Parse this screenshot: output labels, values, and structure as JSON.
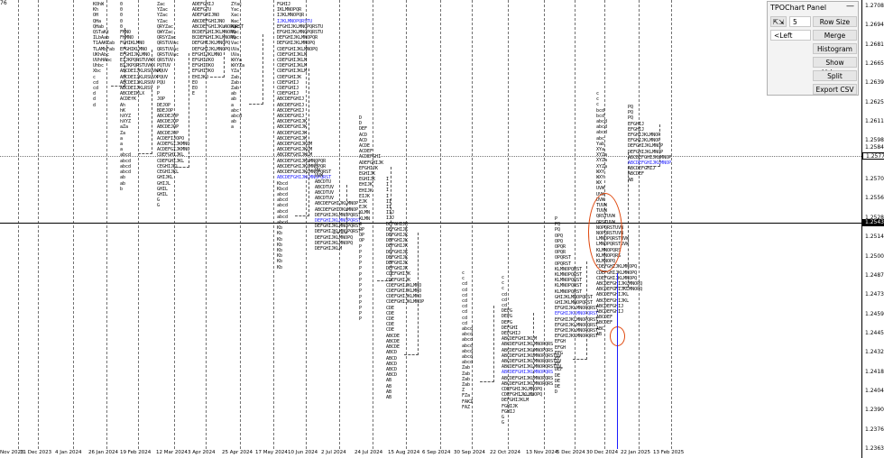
{
  "price_axis": {
    "ticks": [
      "1.27089",
      "1.26949",
      "1.26814",
      "1.26654",
      "1.26394",
      "1.26259",
      "1.26119",
      "1.25984",
      "1.25844",
      "1.25704",
      "1.25564",
      "1.25289",
      "1.25149",
      "1.25009",
      "1.24874",
      "1.24734",
      "1.24599",
      "1.24459",
      "1.24324",
      "1.24184",
      "1.24049",
      "1.23909",
      "1.23769",
      "1.23634"
    ],
    "current_price": "1.25776",
    "crosshair_price": "1.25431"
  },
  "date_axis": {
    "labels": [
      "Nov 2023",
      "11 Dec 2023",
      "4 Jan 2024",
      "26 Jan 2024",
      "19 Feb 2024",
      "12 Mar 2024",
      "3 Apr 2024",
      "25 Apr 2024",
      "17 May 2024",
      "10 Jun 2024",
      "2 Jul 2024",
      "24 Jul 2024",
      "15 Aug 2024",
      "6 Sep 2024",
      "30 Sep 2024",
      "22 Oct 2024",
      "13 Nov 2024",
      "5 Dec 2024",
      "30 Dec 2024",
      "22 Jan 2025",
      "13 Feb 2025"
    ]
  },
  "top_left_label": "76",
  "panel": {
    "title": "TPOChart Panel",
    "minimize": "—",
    "nav_arrows": "⇱⇲",
    "row_size_value": "5",
    "row_size_button": "Row Size",
    "left_select": "<Left",
    "merge_button": "Merge",
    "histogram_button": "Histogram",
    "show_volume_button": "Show Volume",
    "split_button": "Split",
    "export_button": "Export CSV"
  },
  "colors": {
    "annotation": "#e04a10",
    "tpo_blue": "#1a1aff",
    "current_marker": "#ffffff",
    "crosshair_marker": "#000000"
  },
  "profiles": [
    {
      "rows": [
        "KOhW",
        "Kh",
        "OH",
        "QHa",
        "QHab",
        "QSTaKt",
        "ILbAab",
        "T1AAKZab",
        "TLAMbFab",
        "UKhAbc",
        "UVhHAbc",
        "Uhbc",
        "Xbc",
        "c",
        "cd",
        "cd",
        "d",
        "d",
        "d"
      ]
    },
    {
      "rows": [
        "0",
        "0",
        "0",
        "0",
        "0",
        "FMNO",
        "FHMNO",
        "FGHIKLMNO",
        "EFGHIKLMNO",
        "EFGHIJKLMNO",
        "EIJKPQRSTUVWX",
        "BIJKPQRSTUVWX",
        "ABCDEIJKLRSUVWX",
        "ABCDEIJKLRSUVX",
        "ABCDEIJKLRSUV",
        "ABCDEIJKLRSV",
        "ABCDEIKLX",
        "ACDEfK",
        "Ah",
        "hK",
        "hXYZ",
        "hXYZ",
        "aZa",
        "Za",
        "a",
        "a",
        "a",
        "abcd",
        "abcd",
        "abcd",
        "abcd",
        "ab",
        "ab",
        "b"
      ]
    },
    {
      "rows": [
        "Zac",
        "YZac",
        "YZac",
        "YZac",
        "QRYZac",
        "QWYZac",
        "QRSYZac",
        "QRSTUVac",
        "QRSTUVac",
        "QRSTUVac",
        "QRSTUV",
        "PQTUV",
        "PQUV",
        "PQUV",
        "PQU",
        "P",
        "P",
        "JOP",
        "DEJOP",
        "BDEJOP",
        "ABCDEJOP",
        "ABCDEJOP",
        "ABCDEJOP",
        "ABCDEJOP",
        "ACDEFIJOPO",
        "ACDEFGIJKMNO",
        "ACDEFGIJKMNO",
        "CDEFGHIJKL",
        "CDEFGHIJKL",
        "CEGHIJKL",
        "CEGHIJKL",
        "GHIJKL",
        "GHIJL",
        "GHIL",
        "GHIL",
        "G",
        "G"
      ]
    },
    {
      "rows": [
        "ADEFGHIJ",
        "ADEFGTU",
        "ADEFGHIJNO",
        "ABCDEFGHIJNO",
        "ABCDEFGHIJKLNOPQRST",
        "BCDEFGHIJKLMNOPQ",
        "BCDEFGHIJKLMNOPQ",
        "DEFGHIJKLMNOPQ",
        "DEFGHIJKLMNOPQ",
        "EFGHIJKLMNO",
        "EFGHIJKO",
        "EFGHIJKO",
        "EFGHIJKO",
        "EHIJKO",
        "EO",
        "EO",
        "E"
      ]
    },
    {
      "rows": [
        "ZYac",
        "Yac",
        "Xac",
        "Wac",
        "Wac",
        "Vac",
        "Vac",
        "Vac",
        "UVa",
        "UVa",
        "WXYa",
        "WXYZa",
        "YZa",
        "Zab",
        "Zab",
        "Zab",
        "ab",
        "ab",
        "a",
        "abc",
        "abcd",
        "ab",
        "a"
      ]
    },
    {
      "rows": [
        "FGHIJ",
        "IKLMNOPQR",
        "IJKLMNOPQR",
        "IJKLMNOPQRSTU",
        "EFGHIJKLMNOPQRSTU",
        "EFGHIJKLMNOPQRSTU",
        "DEFGHIJKLMNOPQR",
        "DEFGHIJKLMNOPQ",
        "CDEFGHIJKLMNOPQ",
        "CDEFGHIJKLM",
        "CDEFGHIJKLM",
        "CDEFGHIJKLM",
        "CDEFGHIJKLM",
        "CDEFGHIJK",
        "CDEFGHIJ",
        "CDEFGHIJ",
        "CDEFGHIJ",
        "ABCDEFGHIJ",
        "ABCDEFGHIJ",
        "ABCDEFGHIJ",
        "ABCDEFGHIJ",
        "ABCDEFGHIJK",
        "ABCDEFGHIJK",
        "ABCDEFGHIJK",
        "ABCDEFGHIJK",
        "ABCDEFGHIJKLM",
        "ABCDEFGHIJKLM",
        "ABCDEFGHIJKLM",
        "ABCDEFGHIJKLMNOPQR",
        "ABCDEFGHIJKLMNOPQR",
        "ABCDEFGHIJKLMNOPQRST",
        "ABCDEFGHIJKLMNOPQRST",
        "Kbcd",
        "Kbcd",
        "abcd",
        "abcd",
        "abcd",
        "abcd",
        "abcd",
        "abcd",
        "Kb",
        "Kb",
        "Kb",
        "Kb",
        "Kb",
        "Kb",
        "Kb",
        "Kb"
      ]
    },
    {
      "rows": [
        "U",
        "UV",
        "UVW",
        "ABCDTU",
        "ABCDTUV",
        "ABCDTUV",
        "ABCDTUV",
        "ABCDEFGHIJKLMNOP",
        "ABCDEFGHIJKLMNOP",
        "DEFGHIJKLMNOPQRST",
        "DEFGHIJKLMNOPQRST",
        "DEFGHIJKLMNOPQRST",
        "DEFGHIJKLMNOPQRST",
        "DEFGHIJKLMNOPQ",
        "DEFGHIJKLMNOPQ",
        "DEFGHIJKLM"
      ]
    },
    {
      "rows": [
        "D",
        "D",
        "DEF",
        "ACD",
        "ACD",
        "ACDE",
        "ACDEF",
        "ACDEFGHI",
        "ADEFGHIJK",
        "EFGHIJK",
        "EGHIJK",
        "EGHIJK",
        "EHIJK",
        "EHIJK",
        "EIJK",
        "EJK",
        "EJK",
        "KLMN",
        "KLMN",
        "O",
        "OP",
        "OP",
        "OP",
        "P",
        "P",
        "P",
        "P",
        "P",
        "P",
        "P",
        "P",
        "P",
        "P",
        "P",
        "P",
        "P",
        "P"
      ]
    },
    {
      "rows": [
        "I",
        "I",
        "I",
        "I",
        "II",
        "II",
        "IIJ",
        "IJJ",
        "DEFGHIJK",
        "DEFGHIJK",
        "DEFGHIJK",
        "DEFGHIJK",
        "DEFGHIJK",
        "DEFGHIJK",
        "DEFGHIJK",
        "DEFGHIJK",
        "DEFGHIJK",
        "CDEFGHIJK",
        "CDEFGHIJK",
        "CDEFGHIJKLMNO",
        "CDEFGHIJKLMNO",
        "CDEFGHIJKLMNO",
        "CDEFGHIJKLMNOP",
        "CDE",
        "CDE",
        "CDE",
        "CDE",
        "CDE",
        "ABCDE",
        "ABCDE",
        "ABCDE",
        "ABCD",
        "ABCD",
        "ABCD",
        "ABCD",
        "ABCD",
        "AB",
        "AB",
        "AB",
        "AB"
      ]
    },
    {
      "rows": [
        "c",
        "c",
        "cd",
        "cd",
        "cd",
        "cd",
        "cd",
        "cd",
        "cd",
        "cd",
        "abcd",
        "abcd",
        "abcd",
        "abcd",
        "abcd",
        "abcd",
        "abcd",
        "Zab",
        "Zab",
        "Zab",
        "Zab",
        "Z",
        "FZa",
        "FAKZ",
        "FAZ"
      ]
    },
    {
      "rows": [
        "c",
        "c",
        "c",
        "cd",
        "cd",
        "cd",
        "DEFG",
        "DEFG",
        "DEFG",
        "DEFGHI",
        "DEFGHIJ",
        "ABCDEFGHIJKLM",
        "ABCDEFGHIJKLMNOPQRS",
        "ABCDEFGHIJKLMNOPQRS",
        "ABCDEFGHIJKLMNOPQRSTUV",
        "ABCDEFGHIJKLMNOPQRSTUV",
        "ABCDEFGHIJKLMNOPQRSTUV",
        "ABCDEFGHIJKLMNOPQRS",
        "ABCDEFGHIJKLMNOPQRS",
        "ABCDEFGHIJKLMNOPQRS",
        "CDEFGHIJKLMNOPQ",
        "CDEFGHIJKLMNOPQ",
        "DEFGHIJKLM",
        "FGHIJK",
        "FGHIJ",
        "G",
        "G"
      ]
    },
    {
      "rows": [
        "P",
        "PQ",
        "PQ",
        "OPQ",
        "OPQ",
        "OPQR",
        "OPQR",
        "OPQRST",
        "OPQRST",
        "KLMNOPQRST",
        "KLMNOPQRST",
        "KLMNOPQRST",
        "KLMNOPQRST",
        "KLMNOPQRST",
        "GHIJKLMNOPQRST",
        "GHIJKLMNOPQRST",
        "EFGHIJKLMNOPQRST",
        "EFGHIJKLMNOPQRST",
        "EFGHIJKLMNOPQRST",
        "EFGHIJKLMNOPQRST",
        "EFGHIJKLMNOPQRST",
        "EFGHIJKLMNOPQRST",
        "EFGH",
        "EFGH",
        "EFG",
        "EF",
        "EF",
        "DEF",
        "DE",
        "DE",
        "DE",
        "D"
      ]
    },
    {
      "rows": [
        "c",
        "c",
        "c",
        "bcd",
        "bcd",
        "abcd",
        "abcd",
        "abcd",
        "abc",
        "Yab",
        "XYa",
        "XYZa",
        "XYZa",
        "XYZa",
        "WXY",
        "WXY",
        "WX",
        "UVW",
        "UVW",
        "UVW",
        "TUVW",
        "TUVW",
        "QRSTUVW",
        "QRSTUVW",
        "NOPQRSTUVW",
        "NOPQRSTUVW",
        "LMNOPQRSTUVW",
        "LMNOPQRSTUVW",
        "KLMNOPQRS",
        "KLMNOPQRS",
        "KLMNOPQ",
        "CDEFGHIJKLMNOPQ",
        "CDEFGHIJKLMNOPQ",
        "CDEFGHIJKLMNOPQ",
        "ABCDEFGHIJKLMNOPQ",
        "ABCDEFGHIJKLMNOPQ",
        "ABCDEFGHIJKL",
        "ABCDEFGHIJKL",
        "ABCDEFGHIJ",
        "ABCDEFGHIJ",
        "ABCDEF",
        "ABCDEF",
        "ABC",
        "AB"
      ]
    },
    {
      "rows": [
        "PQ",
        "PQ",
        "PQ",
        "EFGHIJ",
        "EFGHIJ",
        "EFGHIJKLMNOP",
        "EFGHIJKLMNOP",
        "DEFGHIJKLMNOP",
        "DEFGHIJKLMNOP",
        "ABCDEFGHIJKLMNOP",
        "ABCDEFGHIJKLMNOP",
        "ABCDEFGHIJ",
        "ABCDEF",
        "AB"
      ]
    }
  ]
}
